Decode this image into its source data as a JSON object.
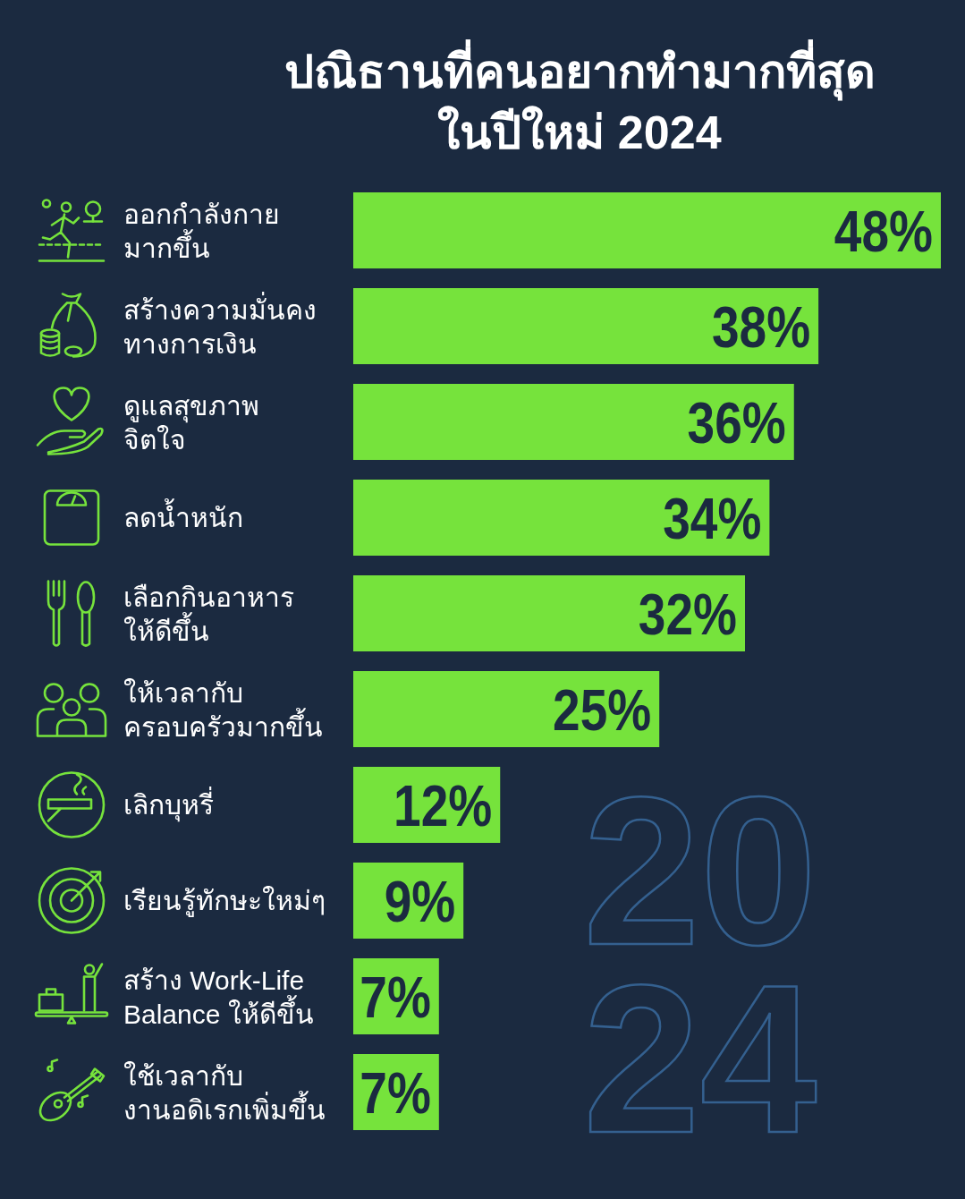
{
  "chart_data": {
    "type": "bar",
    "orientation": "horizontal",
    "title": "ปณิธานที่คนอยากทำมากที่สุด\nในปีใหม่ 2024",
    "categories": [
      "ออกกำลังกาย\nมากขึ้น",
      "สร้างความมั่นคง\nทางการเงิน",
      "ดูแลสุขภาพ\nจิตใจ",
      "ลดน้ำหนัก",
      "เลือกกินอาหาร\nให้ดีขึ้น",
      "ให้เวลากับ\nครอบครัวมากขึ้น",
      "เลิกบุหรี่",
      "เรียนรู้ทักษะใหม่ๆ",
      "สร้าง Work-Life\nBalance ให้ดีขึ้น",
      "ใช้เวลากับ\nงานอดิเรกเพิ่มขึ้น"
    ],
    "values": [
      48,
      38,
      36,
      34,
      32,
      25,
      12,
      9,
      7,
      7
    ],
    "value_labels": [
      "48%",
      "38%",
      "36%",
      "34%",
      "32%",
      "25%",
      "12%",
      "9%",
      "7%",
      "7%"
    ],
    "color": "#76e33c",
    "xlim": [
      0,
      48
    ],
    "tick_labels": "y",
    "annotations": [
      "2024"
    ]
  }
}
